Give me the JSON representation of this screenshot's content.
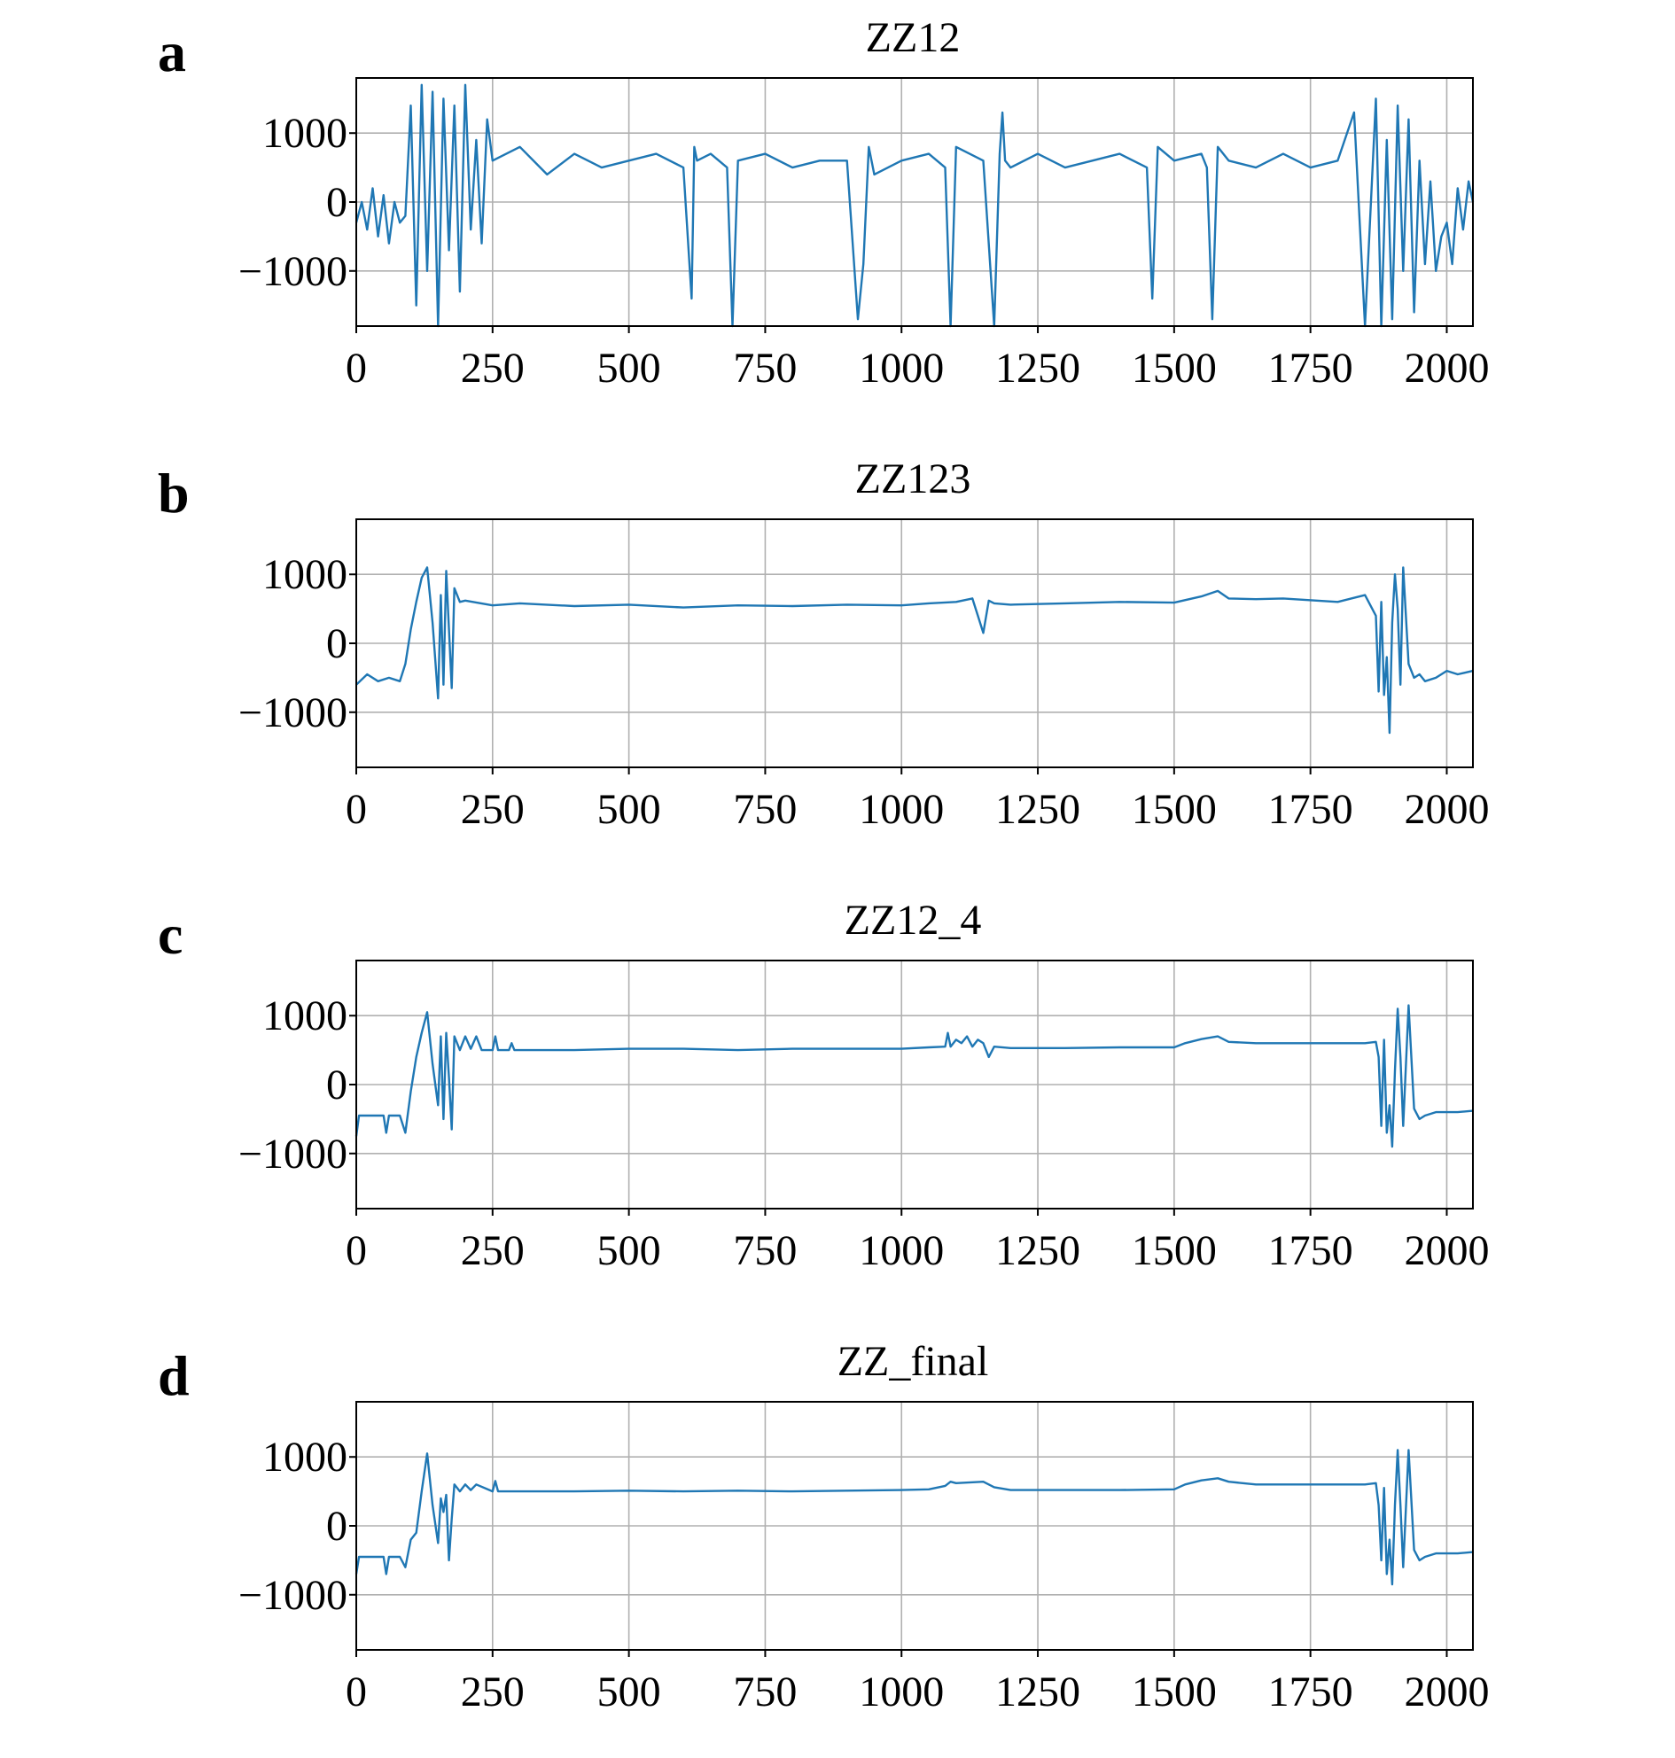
{
  "figure": {
    "panel_letters": [
      "a",
      "b",
      "c",
      "d"
    ]
  },
  "chart_data": [
    {
      "type": "line",
      "title": "ZZ12",
      "xlabel": "",
      "ylabel": "",
      "xlim": [
        0,
        2048
      ],
      "ylim": [
        -1800,
        1800
      ],
      "xticks": [
        0,
        250,
        500,
        750,
        1000,
        1250,
        1500,
        1750,
        2000
      ],
      "xtick_labels": [
        "0",
        "250",
        "500",
        "750",
        "1000",
        "1250",
        "1500",
        "1750",
        "2000"
      ],
      "yticks": [
        -1000,
        0,
        1000
      ],
      "ytick_labels": [
        "−1000",
        "0",
        "1000"
      ],
      "grid": true,
      "color": "#1f77b4",
      "series": [
        {
          "x": [
            0,
            10,
            20,
            30,
            40,
            50,
            60,
            70,
            80,
            90,
            100,
            110,
            120,
            130,
            140,
            150,
            160,
            170,
            180,
            190,
            200,
            210,
            220,
            230,
            240,
            250,
            300,
            350,
            400,
            450,
            500,
            550,
            600,
            615,
            620,
            625,
            650,
            680,
            690,
            700,
            750,
            800,
            850,
            900,
            920,
            930,
            940,
            950,
            1000,
            1050,
            1080,
            1090,
            1100,
            1150,
            1170,
            1180,
            1185,
            1190,
            1200,
            1250,
            1300,
            1350,
            1400,
            1450,
            1460,
            1470,
            1500,
            1550,
            1560,
            1570,
            1580,
            1600,
            1650,
            1700,
            1750,
            1800,
            1830,
            1850,
            1870,
            1880,
            1890,
            1900,
            1910,
            1920,
            1930,
            1940,
            1950,
            1960,
            1970,
            1980,
            1990,
            2000,
            2010,
            2020,
            2030,
            2040,
            2048
          ],
          "y": [
            -300,
            0,
            -400,
            200,
            -500,
            100,
            -600,
            0,
            -300,
            -200,
            1400,
            -1500,
            1700,
            -1000,
            1600,
            -1800,
            1500,
            -700,
            1400,
            -1300,
            1700,
            -400,
            900,
            -600,
            1200,
            600,
            800,
            400,
            700,
            500,
            600,
            700,
            500,
            -1400,
            800,
            600,
            700,
            500,
            -1800,
            600,
            700,
            500,
            600,
            600,
            -1700,
            -900,
            800,
            400,
            600,
            700,
            500,
            -1800,
            800,
            600,
            -1800,
            700,
            1300,
            600,
            500,
            700,
            500,
            600,
            700,
            500,
            -1400,
            800,
            600,
            700,
            500,
            -1700,
            800,
            600,
            500,
            700,
            500,
            600,
            1300,
            -1800,
            1500,
            -1800,
            900,
            -1700,
            1400,
            -1000,
            1200,
            -1600,
            600,
            -900,
            300,
            -1000,
            -500,
            -300,
            -900,
            200,
            -400,
            300,
            0
          ]
        }
      ]
    },
    {
      "type": "line",
      "title": "ZZ123",
      "xlabel": "",
      "ylabel": "",
      "xlim": [
        0,
        2048
      ],
      "ylim": [
        -1800,
        1800
      ],
      "xticks": [
        0,
        250,
        500,
        750,
        1000,
        1250,
        1500,
        1750,
        2000
      ],
      "xtick_labels": [
        "0",
        "250",
        "500",
        "750",
        "1000",
        "1250",
        "1500",
        "1750",
        "2000"
      ],
      "yticks": [
        -1000,
        0,
        1000
      ],
      "ytick_labels": [
        "−1000",
        "0",
        "1000"
      ],
      "grid": true,
      "color": "#1f77b4",
      "series": [
        {
          "x": [
            0,
            20,
            40,
            60,
            80,
            90,
            100,
            110,
            120,
            130,
            140,
            150,
            155,
            160,
            165,
            170,
            175,
            180,
            190,
            200,
            250,
            300,
            400,
            500,
            600,
            700,
            800,
            900,
            1000,
            1050,
            1100,
            1130,
            1140,
            1150,
            1160,
            1170,
            1200,
            1300,
            1400,
            1500,
            1550,
            1580,
            1600,
            1650,
            1700,
            1800,
            1850,
            1870,
            1875,
            1880,
            1885,
            1890,
            1895,
            1900,
            1905,
            1910,
            1915,
            1920,
            1930,
            1940,
            1950,
            1960,
            1980,
            2000,
            2020,
            2048
          ],
          "y": [
            -600,
            -450,
            -550,
            -500,
            -550,
            -300,
            200,
            600,
            950,
            1100,
            300,
            -800,
            700,
            -600,
            1050,
            200,
            -650,
            800,
            600,
            620,
            550,
            580,
            540,
            560,
            520,
            550,
            540,
            560,
            550,
            580,
            600,
            650,
            400,
            150,
            620,
            580,
            560,
            580,
            600,
            590,
            680,
            760,
            650,
            640,
            650,
            600,
            700,
            400,
            -700,
            600,
            -750,
            -200,
            -1300,
            300,
            1000,
            500,
            -600,
            1100,
            -300,
            -500,
            -450,
            -550,
            -500,
            -400,
            -450,
            -400
          ]
        }
      ]
    },
    {
      "type": "line",
      "title": "ZZ12_4",
      "xlabel": "",
      "ylabel": "",
      "xlim": [
        0,
        2048
      ],
      "ylim": [
        -1800,
        1800
      ],
      "xticks": [
        0,
        250,
        500,
        750,
        1000,
        1250,
        1500,
        1750,
        2000
      ],
      "xtick_labels": [
        "0",
        "250",
        "500",
        "750",
        "1000",
        "1250",
        "1500",
        "1750",
        "2000"
      ],
      "yticks": [
        -1000,
        0,
        1000
      ],
      "ytick_labels": [
        "−1000",
        "0",
        "1000"
      ],
      "grid": true,
      "color": "#1f77b4",
      "series": [
        {
          "x": [
            0,
            5,
            10,
            20,
            40,
            50,
            55,
            60,
            80,
            90,
            100,
            110,
            120,
            130,
            140,
            150,
            155,
            160,
            165,
            170,
            175,
            180,
            190,
            200,
            210,
            220,
            230,
            250,
            255,
            260,
            280,
            285,
            290,
            300,
            400,
            500,
            600,
            700,
            800,
            900,
            1000,
            1050,
            1080,
            1085,
            1090,
            1100,
            1110,
            1120,
            1130,
            1140,
            1150,
            1160,
            1170,
            1200,
            1300,
            1400,
            1500,
            1520,
            1550,
            1580,
            1600,
            1650,
            1700,
            1800,
            1850,
            1870,
            1875,
            1880,
            1885,
            1890,
            1895,
            1900,
            1905,
            1910,
            1915,
            1920,
            1930,
            1940,
            1950,
            1960,
            1980,
            2000,
            2020,
            2048
          ],
          "y": [
            -750,
            -450,
            -450,
            -450,
            -450,
            -450,
            -700,
            -450,
            -450,
            -700,
            -100,
            400,
            750,
            1050,
            300,
            -300,
            700,
            -500,
            750,
            100,
            -650,
            700,
            500,
            700,
            520,
            700,
            500,
            500,
            700,
            500,
            500,
            600,
            500,
            500,
            500,
            520,
            520,
            500,
            520,
            520,
            520,
            540,
            550,
            750,
            550,
            650,
            600,
            700,
            550,
            650,
            600,
            400,
            550,
            530,
            530,
            540,
            540,
            600,
            660,
            700,
            620,
            600,
            600,
            600,
            600,
            620,
            400,
            -600,
            650,
            -700,
            -300,
            -900,
            200,
            1100,
            400,
            -600,
            1150,
            -350,
            -500,
            -450,
            -400,
            -400,
            -400,
            -380
          ]
        }
      ]
    },
    {
      "type": "line",
      "title": "ZZ_final",
      "xlabel": "",
      "ylabel": "",
      "xlim": [
        0,
        2048
      ],
      "ylim": [
        -1800,
        1800
      ],
      "xticks": [
        0,
        250,
        500,
        750,
        1000,
        1250,
        1500,
        1750,
        2000
      ],
      "xtick_labels": [
        "0",
        "250",
        "500",
        "750",
        "1000",
        "1250",
        "1500",
        "1750",
        "2000"
      ],
      "yticks": [
        -1000,
        0,
        1000
      ],
      "ytick_labels": [
        "−1000",
        "0",
        "1000"
      ],
      "grid": true,
      "color": "#1f77b4",
      "series": [
        {
          "x": [
            0,
            5,
            10,
            20,
            40,
            50,
            55,
            60,
            80,
            90,
            100,
            110,
            120,
            130,
            140,
            150,
            155,
            160,
            165,
            170,
            175,
            180,
            190,
            200,
            210,
            220,
            250,
            255,
            260,
            300,
            400,
            500,
            600,
            700,
            800,
            900,
            1000,
            1050,
            1080,
            1090,
            1100,
            1150,
            1170,
            1200,
            1300,
            1400,
            1500,
            1520,
            1550,
            1580,
            1600,
            1650,
            1700,
            1800,
            1850,
            1870,
            1875,
            1880,
            1885,
            1890,
            1895,
            1900,
            1905,
            1910,
            1915,
            1920,
            1930,
            1940,
            1950,
            1960,
            1980,
            2000,
            2020,
            2048
          ],
          "y": [
            -700,
            -450,
            -450,
            -450,
            -450,
            -450,
            -700,
            -450,
            -450,
            -600,
            -200,
            -100,
            500,
            1050,
            300,
            -250,
            400,
            200,
            450,
            -500,
            100,
            600,
            500,
            600,
            520,
            600,
            500,
            650,
            500,
            500,
            500,
            510,
            500,
            510,
            500,
            510,
            520,
            530,
            580,
            640,
            620,
            640,
            560,
            520,
            520,
            520,
            530,
            600,
            660,
            690,
            640,
            600,
            600,
            600,
            600,
            620,
            300,
            -500,
            550,
            -700,
            -200,
            -850,
            300,
            1100,
            300,
            -600,
            1100,
            -350,
            -500,
            -450,
            -400,
            -400,
            -400,
            -380
          ]
        }
      ]
    }
  ]
}
